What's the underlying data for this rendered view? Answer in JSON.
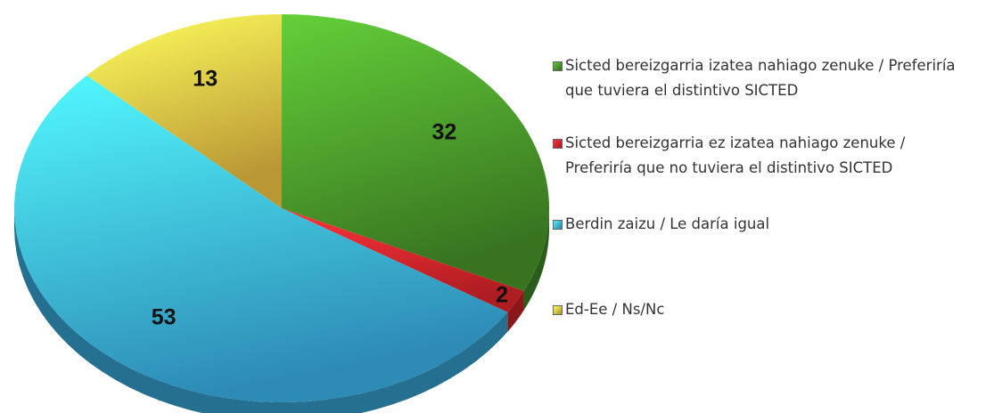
{
  "chart_data": {
    "type": "pie",
    "categories": [
      "Sicted bereizgarria izatea nahiago zenuke / Preferiría que tuviera el distintivo SICTED",
      "Sicted bereizgarria ez izatea nahiago zenuke / Preferiría que no tuviera el distintivo SICTED",
      "Berdin zaizu / Le daría igual",
      "Ed-Ee / Ns/Nc"
    ],
    "values": [
      32,
      2,
      53,
      13
    ],
    "colors": [
      "#4a9a2a",
      "#e8262c",
      "#3db9f2",
      "#f7c945"
    ]
  }
}
